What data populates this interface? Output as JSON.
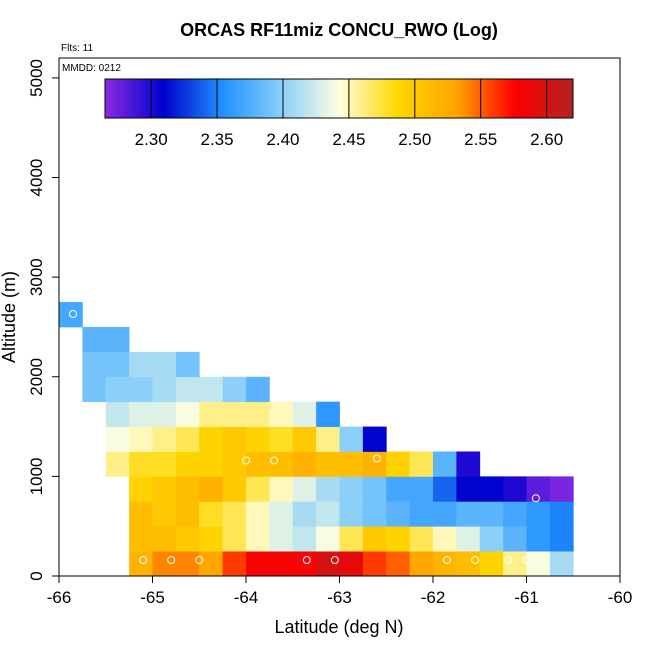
{
  "chart_data": {
    "type": "heatmap",
    "title": "ORCAS RF11miz CONCU_RWO (Log)",
    "xlabel": "Latitude (deg N)",
    "ylabel": "Altitude (m)",
    "xlim": [
      -66,
      -60
    ],
    "ylim": [
      0,
      5200
    ],
    "xticks": [
      -66,
      -65,
      -64,
      -63,
      -62,
      -61,
      -60
    ],
    "xtick_labels": [
      "-66",
      "-65",
      "-64",
      "-63",
      "-62",
      "-61",
      "-60"
    ],
    "yticks": [
      0,
      1000,
      2000,
      3000,
      4000,
      5000
    ],
    "ytick_labels": [
      "0",
      "1000",
      "2000",
      "3000",
      "4000",
      "5000"
    ],
    "annotations": {
      "flights": "Flts: 11",
      "date": "MMDD: 0212"
    },
    "colorbar": {
      "min": 2.265,
      "max": 2.62,
      "ticks": [
        2.3,
        2.35,
        2.4,
        2.45,
        2.5,
        2.55,
        2.6
      ],
      "tick_labels": [
        "2.30",
        "2.35",
        "2.40",
        "2.45",
        "2.50",
        "2.55",
        "2.60"
      ],
      "colors": [
        "#8a2be2",
        "#0000cd",
        "#1e90ff",
        "#87cefa",
        "#ffffe0",
        "#ffd700",
        "#ffa500",
        "#ff0000",
        "#b22222"
      ]
    },
    "grid": {
      "lon0": -66,
      "dlon": 0.25,
      "alt0": 0,
      "dalt": 250
    },
    "rows": [
      {
        "row": 0,
        "start": 3,
        "values": [
          2.52,
          2.54,
          2.54,
          2.53,
          2.56,
          2.58,
          2.58,
          2.58,
          2.6,
          2.59,
          2.56,
          2.55,
          2.53,
          2.52,
          2.51,
          2.49,
          2.46,
          2.44,
          2.41
        ]
      },
      {
        "row": 1,
        "start": 3,
        "values": [
          2.51,
          2.51,
          2.5,
          2.49,
          2.47,
          2.45,
          2.43,
          2.42,
          2.44,
          2.47,
          2.5,
          2.49,
          2.47,
          2.45,
          2.43,
          2.4,
          2.38,
          2.36,
          2.35
        ]
      },
      {
        "row": 2,
        "start": 3,
        "values": [
          2.51,
          2.5,
          2.51,
          2.48,
          2.47,
          2.45,
          2.43,
          2.41,
          2.42,
          2.4,
          2.39,
          2.38,
          2.37,
          2.37,
          2.38,
          2.38,
          2.37,
          2.36,
          2.35
        ]
      },
      {
        "row": 3,
        "start": 3,
        "values": [
          2.49,
          2.5,
          2.51,
          2.52,
          2.5,
          2.47,
          2.45,
          2.43,
          2.41,
          2.4,
          2.39,
          2.37,
          2.37,
          2.34,
          2.31,
          2.31,
          2.3,
          2.28,
          2.27
        ]
      },
      {
        "row": 4,
        "start": 2,
        "values": [
          2.46,
          2.48,
          2.48,
          2.49,
          2.49,
          2.5,
          2.51,
          2.51,
          2.52,
          2.51,
          2.51,
          2.52,
          2.49,
          2.47,
          2.38,
          2.3
        ]
      },
      {
        "row": 5,
        "start": 2,
        "values": [
          2.44,
          2.45,
          2.46,
          2.47,
          2.49,
          2.5,
          2.49,
          2.48,
          2.5,
          2.46,
          2.4,
          2.31
        ]
      },
      {
        "row": 6,
        "start": 2,
        "values": [
          2.42,
          2.43,
          2.43,
          2.44,
          2.46,
          2.46,
          2.46,
          2.45,
          2.43,
          2.36
        ]
      },
      {
        "row": 7,
        "start": 1,
        "values": [
          2.39,
          2.4,
          2.4,
          2.41,
          2.42,
          2.42,
          2.4,
          2.38
        ]
      },
      {
        "row": 8,
        "start": 1,
        "values": [
          2.39,
          2.39,
          2.41,
          2.41,
          2.39
        ]
      },
      {
        "row": 9,
        "start": 1,
        "values": [
          2.38,
          2.38
        ]
      },
      {
        "row": 10,
        "start": 0,
        "values": [
          2.37
        ]
      }
    ],
    "circles": [
      {
        "lat": -65.1,
        "alt": 160
      },
      {
        "lat": -64.8,
        "alt": 160
      },
      {
        "lat": -64.5,
        "alt": 160
      },
      {
        "lat": -63.35,
        "alt": 160
      },
      {
        "lat": -63.05,
        "alt": 160
      },
      {
        "lat": -61.85,
        "alt": 160
      },
      {
        "lat": -61.55,
        "alt": 160
      },
      {
        "lat": -61.2,
        "alt": 160
      },
      {
        "lat": -61.0,
        "alt": 160
      },
      {
        "lat": -64.0,
        "alt": 1160
      },
      {
        "lat": -63.7,
        "alt": 1160
      },
      {
        "lat": -62.6,
        "alt": 1180
      },
      {
        "lat": -60.9,
        "alt": 780
      },
      {
        "lat": -65.85,
        "alt": 2630
      }
    ]
  }
}
